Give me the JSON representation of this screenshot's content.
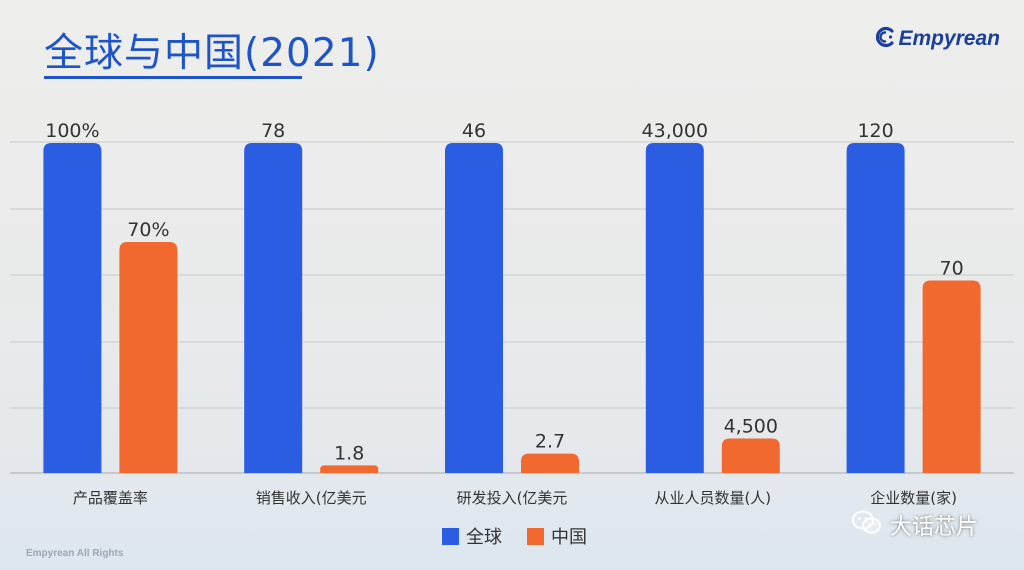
{
  "slide": {
    "title": "全球与中国(2021)",
    "logo_text": "Empyrean",
    "footer_text": "Empyrean All Rights",
    "watermark_text": "大话芯片"
  },
  "colors": {
    "global": "#2b5de3",
    "china": "#f2692f",
    "title": "#1d54c8",
    "gridline": "#c8c8c8"
  },
  "icons": {
    "logo": "empyrean-e-logo-icon",
    "watermark": "wechat-icon"
  },
  "chart_data": {
    "type": "bar",
    "title": "",
    "note": "each category drawn on its own independent scale",
    "categories": [
      "产品覆盖率",
      "销售收入(亿美元",
      "研发投入(亿美元",
      "从业人员数量(人)",
      "企业数量(家)"
    ],
    "series": [
      {
        "name": "全球",
        "values": [
          100,
          78,
          46,
          43000,
          120
        ],
        "labels": [
          "100%",
          "78",
          "46",
          "43,000",
          "120"
        ]
      },
      {
        "name": "中国",
        "values": [
          70,
          1.8,
          2.7,
          4500,
          70
        ],
        "labels": [
          "70%",
          "1.8",
          "2.7",
          "4,500",
          "70"
        ]
      }
    ],
    "legend": {
      "position": "bottom",
      "entries": [
        "全球",
        "中国"
      ]
    },
    "grid": true
  }
}
